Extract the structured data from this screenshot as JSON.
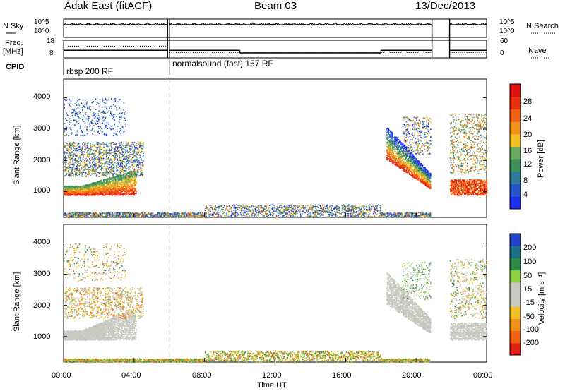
{
  "header": {
    "radar": "Adak East (fitACF)",
    "beam": "Beam 03",
    "date": "13/Dec/2013"
  },
  "side_labels": {
    "nsky": "N.Sky",
    "nsearch": "N.Search",
    "freq": "Freq.",
    "freq_unit": "[MHz]",
    "nave": "Nave",
    "cpid": "CPID"
  },
  "cpid": {
    "segments": [
      {
        "label": "rbsp 200 RF",
        "start": "00:00",
        "end": "06:00"
      },
      {
        "label": "normalsound (fast) 157 RF",
        "start": "06:00",
        "end": "24:00"
      }
    ]
  },
  "chart_data": [
    {
      "type": "line",
      "name": "noise",
      "left_axis_ticks": [
        "10^5",
        "10^0"
      ],
      "right_axis_ticks": [
        "10^5",
        "10^0"
      ],
      "x_range_hours": [
        0,
        24
      ],
      "series": [
        {
          "name": "N.Sky",
          "segments": [
            [
              0,
              5.9
            ],
            [
              6.0,
              20.9
            ],
            [
              21.9,
              24
            ]
          ],
          "level_high": 0.8
        },
        {
          "name": "N.Search",
          "segments": [
            [
              0,
              5.9
            ],
            [
              6.0,
              20.9
            ],
            [
              21.9,
              24
            ]
          ],
          "level": 0.7
        }
      ]
    },
    {
      "type": "line",
      "name": "frequency",
      "left_axis_ticks": [
        "18",
        "8"
      ],
      "right_axis_ticks": [
        "60",
        "0"
      ],
      "left_ylim": [
        8,
        18
      ],
      "right_ylim": [
        0,
        60
      ],
      "freq_segments": [
        {
          "x0": 0,
          "x1": 5.9,
          "freq": 12.3
        },
        {
          "x0": 6.0,
          "x1": 10.0,
          "freq": 12.3
        },
        {
          "x0": 10.0,
          "x1": 18.0,
          "freq": 10.8
        },
        {
          "x0": 18.0,
          "x1": 20.9,
          "freq": 12.3
        },
        {
          "x0": 21.9,
          "x1": 24,
          "freq": 12.3
        }
      ],
      "nave_segments": [
        {
          "x0": 0,
          "x1": 5.9,
          "nave": 40
        },
        {
          "x0": 6.0,
          "x1": 20.9,
          "nave": 18
        },
        {
          "x0": 21.9,
          "x1": 24,
          "nave": 18
        }
      ]
    },
    {
      "type": "heatmap",
      "name": "power",
      "ylabel": "Slant Range [km]",
      "yticks": [
        1000,
        2000,
        3000,
        4000
      ],
      "ylim": [
        180,
        4600
      ],
      "xlim_hours": [
        0,
        24
      ],
      "colorbar": {
        "label": "Power [dB]",
        "ticks": [
          "4",
          "8",
          "12",
          "16",
          "20",
          "24",
          "28"
        ],
        "colors": [
          "#1f2ff0",
          "#2555c8",
          "#2f7a9a",
          "#3f8f5a",
          "#6aa860",
          "#f0c020",
          "#f09018",
          "#f06010",
          "#e83010",
          "#e01010"
        ]
      }
    },
    {
      "type": "heatmap",
      "name": "velocity",
      "ylabel": "Slant Range [km]",
      "yticks": [
        1000,
        2000,
        3000,
        4000
      ],
      "ylim": [
        180,
        4600
      ],
      "xlim_hours": [
        0,
        24
      ],
      "xticks": [
        "00:00",
        "04:00",
        "08:00",
        "12:00",
        "16:00",
        "20:00",
        "00:00"
      ],
      "xlabel": "Time UT",
      "colorbar": {
        "label": "Velocity [m s⁻¹]",
        "ticks": [
          "200",
          "100",
          "50",
          "15",
          "-15",
          "-50",
          "-100",
          "-200"
        ],
        "colors": [
          "#2040c8",
          "#1e6e8a",
          "#2f8a4a",
          "#8ad040",
          "#c8c8c0",
          "#c8c8c0",
          "#f0c020",
          "#f09018",
          "#f06010",
          "#e02010"
        ]
      }
    }
  ]
}
